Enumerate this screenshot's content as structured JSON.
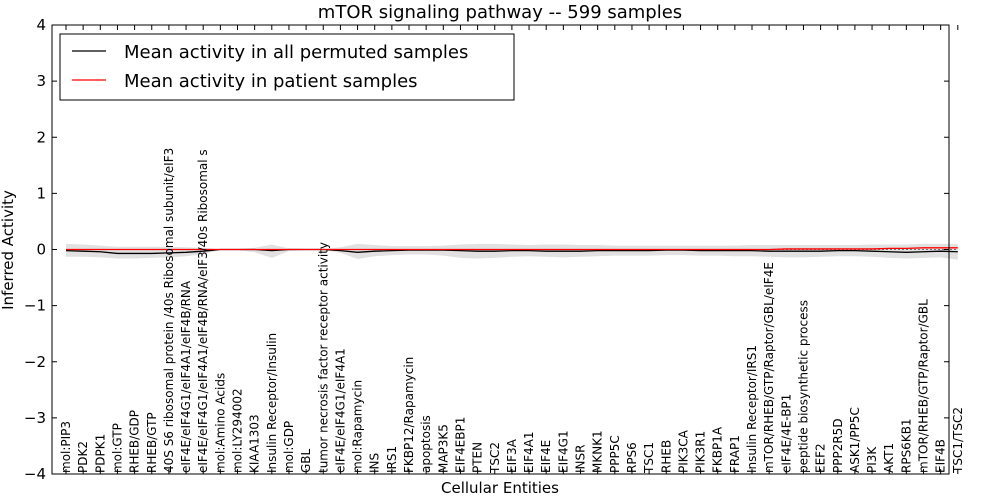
{
  "chart_data": {
    "type": "line",
    "title": "mTOR signaling pathway -- 599 samples",
    "xlabel": "Cellular Entities",
    "ylabel": "Inferred Activity",
    "ylim": [
      -4,
      4
    ],
    "yticks": [
      -4,
      -3,
      -2,
      -1,
      0,
      1,
      2,
      3,
      4
    ],
    "ytick_labels": [
      "−4",
      "−3",
      "−2",
      "−1",
      "0",
      "1",
      "2",
      "3",
      "4"
    ],
    "legend_position": "top-left",
    "categories": [
      "mol:PIP3",
      "PDK2",
      "PDPK1",
      "mol:GTP",
      "RHEB/GDP",
      "RHEB/GTP",
      "40S S6 ribosomal protein /40s Ribosomal subunit/eIF3",
      "eIF4E/eIF4G1/eIF4A1/eIF4B/RNA",
      "eIF4E/eIF4G1/eIF4A1/eIF4B/RNA/eIF3/40s Ribosomal s",
      "mol:Amino Acids",
      "mol:LY294002",
      "KIAA1303",
      "Insulin Receptor/Insulin",
      "mol:GDP",
      "GBL",
      "tumor necrosis factor receptor activity",
      "eIF4E/eIF4G1/eIF4A1",
      "mol:Rapamycin",
      "INS",
      "IRS1",
      "FKBP12/Rapamycin",
      "apoptosis",
      "MAP3K5",
      "EIF4EBP1",
      "PTEN",
      "TSC2",
      "EIF3A",
      "EIF4A1",
      "EIF4E",
      "EIF4G1",
      "INSR",
      "MKNK1",
      "PPP5C",
      "RPS6",
      "TSC1",
      "RHEB",
      "PIK3CA",
      "PIK3R1",
      "FKBP1A",
      "FRAP1",
      "Insulin Receptor/IRS1",
      "mTOR/RHEB/GTP/Raptor/GBL/eIF4E",
      "eIF4E/4E-BP1",
      "peptide biosynthetic process",
      "EEF2",
      "PPP2R5D",
      "ASK1/PP5C",
      "PI3K",
      "AKT1",
      "RPS6KB1",
      "mTOR/RHEB/GTP/Raptor/GBL",
      "EIF4B",
      "TSC1/TSC2"
    ],
    "series": [
      {
        "name": "Mean activity in all permuted samples",
        "color": "#000000",
        "values": [
          -0.02,
          -0.03,
          -0.04,
          -0.07,
          -0.07,
          -0.07,
          -0.06,
          -0.05,
          -0.03,
          0.0,
          0.0,
          0.0,
          -0.02,
          0.0,
          0.0,
          0.0,
          -0.02,
          -0.05,
          -0.03,
          -0.02,
          -0.01,
          -0.01,
          -0.01,
          -0.02,
          -0.03,
          -0.03,
          -0.02,
          -0.02,
          -0.03,
          -0.03,
          -0.03,
          -0.02,
          -0.02,
          -0.02,
          -0.02,
          -0.01,
          -0.01,
          -0.02,
          -0.02,
          -0.02,
          -0.02,
          -0.03,
          -0.03,
          -0.03,
          -0.03,
          -0.02,
          -0.02,
          -0.03,
          -0.04,
          -0.05,
          -0.04,
          -0.03,
          -0.04
        ]
      },
      {
        "name": "Mean activity in patient samples",
        "color": "#ff0000",
        "values": [
          0.0,
          0.0,
          0.0,
          0.0,
          0.0,
          0.0,
          0.0,
          0.0,
          0.0,
          0.0,
          0.0,
          0.0,
          0.0,
          0.0,
          0.0,
          0.0,
          0.0,
          0.0,
          0.0,
          0.0,
          0.0,
          0.0,
          0.0,
          0.0,
          0.0,
          0.0,
          0.0,
          0.0,
          0.0,
          0.0,
          0.0,
          0.0,
          0.0,
          0.0,
          0.0,
          0.0,
          0.0,
          0.0,
          0.0,
          0.0,
          0.0,
          0.0,
          0.01,
          0.01,
          0.01,
          0.01,
          0.01,
          0.01,
          0.02,
          0.02,
          0.03,
          0.03,
          0.03
        ]
      }
    ],
    "band": {
      "upper": [
        0.1,
        0.09,
        0.07,
        0.05,
        0.05,
        0.05,
        0.05,
        0.04,
        0.03,
        0.01,
        0.01,
        0.03,
        0.09,
        0.02,
        0.01,
        0.01,
        0.04,
        0.1,
        0.08,
        0.06,
        0.06,
        0.06,
        0.07,
        0.09,
        0.1,
        0.1,
        0.09,
        0.08,
        0.09,
        0.09,
        0.08,
        0.08,
        0.07,
        0.07,
        0.07,
        0.07,
        0.07,
        0.07,
        0.07,
        0.07,
        0.08,
        0.08,
        0.08,
        0.08,
        0.08,
        0.08,
        0.08,
        0.09,
        0.09,
        0.09,
        0.1,
        0.1,
        0.1
      ],
      "lower": [
        -0.13,
        -0.13,
        -0.14,
        -0.16,
        -0.16,
        -0.15,
        -0.14,
        -0.12,
        -0.08,
        -0.01,
        -0.01,
        -0.05,
        -0.15,
        -0.03,
        -0.01,
        -0.01,
        -0.06,
        -0.17,
        -0.12,
        -0.1,
        -0.09,
        -0.09,
        -0.11,
        -0.15,
        -0.16,
        -0.15,
        -0.13,
        -0.12,
        -0.13,
        -0.14,
        -0.13,
        -0.12,
        -0.11,
        -0.11,
        -0.11,
        -0.1,
        -0.1,
        -0.11,
        -0.11,
        -0.12,
        -0.12,
        -0.13,
        -0.14,
        -0.14,
        -0.13,
        -0.12,
        -0.12,
        -0.13,
        -0.15,
        -0.16,
        -0.15,
        -0.14,
        -0.18
      ]
    }
  }
}
